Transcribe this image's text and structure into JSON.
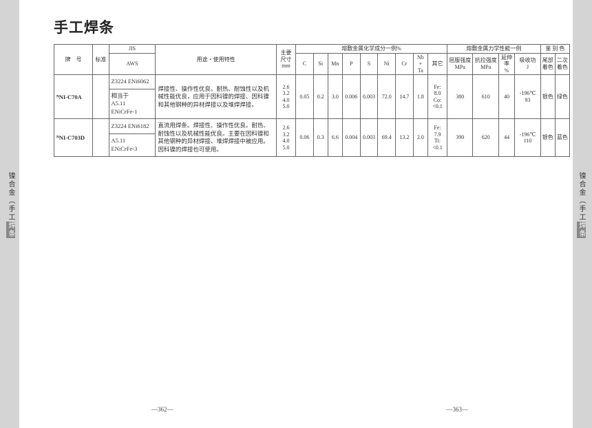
{
  "title": "手工焊条",
  "side_label_plain": "镍合金（手工",
  "side_label_hl": "焊条",
  "header": {
    "brand": "牌　号",
    "std": "标准",
    "jis": "JIS",
    "aws": "AWS",
    "usage": "用途・使用特性",
    "size": "主要\n尺寸\nmm",
    "chem_group": "熔敷金属化学成分一例%",
    "mech_group": "熔敷金属力学性能一例",
    "id_group": "鉴 别 色",
    "c": "C",
    "si": "Si",
    "mn": "Mn",
    "p": "P",
    "s": "S",
    "ni": "Ni",
    "cr": "Cr",
    "nbta": "Nb\n+\nTa",
    "other": "其它",
    "ys": "屈服强度\nMPa",
    "ts": "抗拉强度\nMPa",
    "el": "延伸率\n%",
    "impact": "吸收功\nJ",
    "tail": "尾部\n着色",
    "sec": "二次\n着色"
  },
  "rows": [
    {
      "brand": "ᴺNI-C70A",
      "jis": "Z3224 ENi6062",
      "aws": "相当于\nA5.11\nENiCrFe-1",
      "usage": "焊接性、操作性优良。耐热、耐蚀性以及机械性能优良，应用于因科镍的焊接、因科镍和其他钢种的异材焊接以及堆焊焊接。",
      "size": "2.6\n3.2\n4.0\n5.0",
      "c": "0.05",
      "si": "0.2",
      "mn": "3.0",
      "p": "0.006",
      "s": "0.003",
      "ni": "72.0",
      "cr": "14.7",
      "nbta": "1.8",
      "other": "Fe:\n8.0\nCo:\n<0.1",
      "ys": "380",
      "ts": "610",
      "el": "40",
      "impact": "-196℃\n93",
      "tail": "银色",
      "sec": "绿色"
    },
    {
      "brand": "ᴺNI-C703D",
      "jis": "Z3224 ENi6182",
      "aws": "A5.11\nENiCrFe-3",
      "usage": "直流用焊条。焊接性、操作性优良。耐热、耐蚀性以及机械性能优良。主要在因科镍和其他钢种的异材焊接、堆焊焊接中被应用。因科镍的焊接也可使用。",
      "size": "2.6\n3.2\n4.0\n5.0",
      "c": "0.06",
      "si": "0.3",
      "mn": "6.6",
      "p": "0.004",
      "s": "0.003",
      "ni": "69.4",
      "cr": "13.2",
      "nbta": "2.0",
      "other": "Fe:\n7.9\nTi:\n<0.1",
      "ys": "390",
      "ts": "620",
      "el": "44",
      "impact": "-196℃\n110",
      "tail": "银色",
      "sec": "蓝色"
    }
  ],
  "page_l": "—362—",
  "page_r": "—363—"
}
